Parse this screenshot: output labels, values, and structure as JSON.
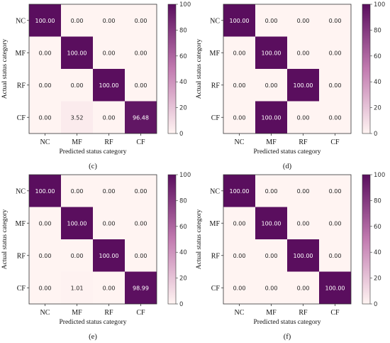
{
  "colors": {
    "low": "#fff4f2",
    "mid": "#c27bb0",
    "high": "#5a0e5e"
  },
  "chart_data": [
    {
      "type": "heatmap",
      "panel_label": "(c)",
      "x_categories": [
        "NC",
        "MF",
        "RF",
        "CF"
      ],
      "y_categories": [
        "NC",
        "MF",
        "RF",
        "CF"
      ],
      "xlabel": "Predicted status category",
      "ylabel": "Actual status category",
      "values": [
        [
          100.0,
          0.0,
          0.0,
          0.0
        ],
        [
          0.0,
          100.0,
          0.0,
          0.0
        ],
        [
          0.0,
          0.0,
          100.0,
          0.0
        ],
        [
          0.0,
          3.52,
          0.0,
          96.48
        ]
      ],
      "value_labels": [
        [
          "100.00",
          "0.00",
          "0.00",
          "0.00"
        ],
        [
          "0.00",
          "100.00",
          "0.00",
          "0.00"
        ],
        [
          "0.00",
          "0.00",
          "100.00",
          "0.00"
        ],
        [
          "0.00",
          "3.52",
          "0.00",
          "96.48"
        ]
      ],
      "colorbar": {
        "range": [
          0,
          100
        ],
        "tick_labels": [
          "0",
          "20",
          "40",
          "60",
          "80",
          "100"
        ]
      }
    },
    {
      "type": "heatmap",
      "panel_label": "(d)",
      "x_categories": [
        "NC",
        "MF",
        "RF",
        "CF"
      ],
      "y_categories": [
        "NC",
        "MF",
        "RF",
        "CF"
      ],
      "xlabel": "Predicted status category",
      "ylabel": "Actual status category",
      "values": [
        [
          100.0,
          0.0,
          0.0,
          0.0
        ],
        [
          0.0,
          100.0,
          0.0,
          0.0
        ],
        [
          0.0,
          0.0,
          100.0,
          0.0
        ],
        [
          0.0,
          100.0,
          0.0,
          0.0
        ]
      ],
      "value_labels": [
        [
          "100.00",
          "0.00",
          "0.00",
          "0.00"
        ],
        [
          "0.00",
          "100.00",
          "0.00",
          "0.00"
        ],
        [
          "0.00",
          "0.00",
          "100.00",
          "0.00"
        ],
        [
          "0.00",
          "100.00",
          "0.00",
          "0.00"
        ]
      ],
      "colorbar": {
        "range": [
          0,
          100
        ],
        "tick_labels": [
          "0",
          "20",
          "40",
          "60",
          "80",
          "100"
        ]
      }
    },
    {
      "type": "heatmap",
      "panel_label": "(e)",
      "x_categories": [
        "NC",
        "MF",
        "RF",
        "CF"
      ],
      "y_categories": [
        "NC",
        "MF",
        "RF",
        "CF"
      ],
      "xlabel": "Predicted status category",
      "ylabel": "Actual status category",
      "values": [
        [
          100.0,
          0.0,
          0.0,
          0.0
        ],
        [
          0.0,
          100.0,
          0.0,
          0.0
        ],
        [
          0.0,
          0.0,
          100.0,
          0.0
        ],
        [
          0.0,
          1.01,
          0.0,
          98.99
        ]
      ],
      "value_labels": [
        [
          "100.00",
          "0.00",
          "0.00",
          "0.00"
        ],
        [
          "0.00",
          "100.00",
          "0.00",
          "0.00"
        ],
        [
          "0.00",
          "0.00",
          "100.00",
          "0.00"
        ],
        [
          "0.00",
          "1.01",
          "0.00",
          "98.99"
        ]
      ],
      "colorbar": {
        "range": [
          0,
          100
        ],
        "tick_labels": [
          "0",
          "20",
          "40",
          "60",
          "80",
          "100"
        ]
      }
    },
    {
      "type": "heatmap",
      "panel_label": "(f)",
      "x_categories": [
        "NC",
        "MF",
        "RF",
        "CF"
      ],
      "y_categories": [
        "NC",
        "MF",
        "RF",
        "CF"
      ],
      "xlabel": "Predicted status category",
      "ylabel": "Actual status category",
      "values": [
        [
          100.0,
          0.0,
          0.0,
          0.0
        ],
        [
          0.0,
          100.0,
          0.0,
          0.0
        ],
        [
          0.0,
          0.0,
          100.0,
          0.0
        ],
        [
          0.0,
          0.0,
          0.0,
          100.0
        ]
      ],
      "value_labels": [
        [
          "100.00",
          "0.00",
          "0.00",
          "0.00"
        ],
        [
          "0.00",
          "100.00",
          "0.00",
          "0.00"
        ],
        [
          "0.00",
          "0.00",
          "100.00",
          "0.00"
        ],
        [
          "0.00",
          "0.00",
          "0.00",
          "100.00"
        ]
      ],
      "colorbar": {
        "range": [
          0,
          100
        ],
        "tick_labels": [
          "0",
          "20",
          "40",
          "60",
          "80",
          "100"
        ]
      }
    }
  ]
}
